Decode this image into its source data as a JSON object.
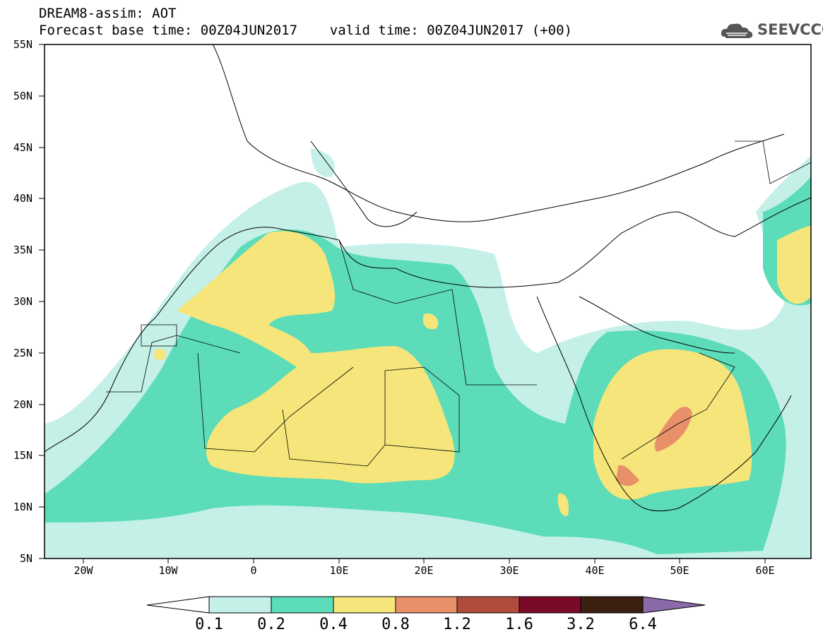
{
  "header": {
    "title": "DREAM8-assim: AOT",
    "subtitle": "Forecast base time: 00Z04JUN2017    valid time: 00Z04JUN2017 (+00)",
    "logo_text": "SEEVCCC"
  },
  "map": {
    "variable": "AOT",
    "projection": "lat-lon",
    "extent": {
      "lon_min": -25,
      "lon_max": 65,
      "lat_min": 5,
      "lat_max": 55
    },
    "lat_labels": [
      "55N",
      "50N",
      "45N",
      "40N",
      "35N",
      "30N",
      "25N",
      "20N",
      "15N",
      "10N",
      "5N"
    ],
    "lon_labels": [
      "20W",
      "10W",
      "0",
      "10E",
      "20E",
      "30E",
      "40E",
      "50E",
      "60E"
    ]
  },
  "colorbar": {
    "labels": [
      "0.1",
      "0.2",
      "0.4",
      "0.8",
      "1.2",
      "1.6",
      "3.2",
      "6.4"
    ],
    "colors": [
      "#ffffff",
      "#c4f0e8",
      "#5cdcb8",
      "#f5e57a",
      "#e8906a",
      "#b04c3c",
      "#7a0a28",
      "#3a2010",
      "#8a6aa8"
    ]
  }
}
